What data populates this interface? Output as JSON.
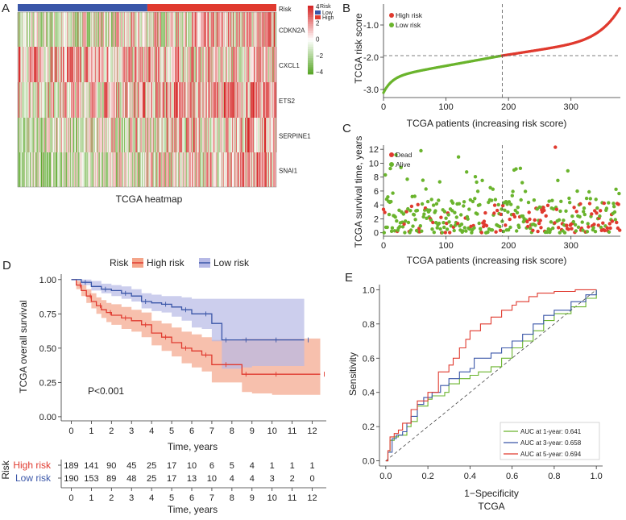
{
  "colors": {
    "high": "#e03a2f",
    "low": "#3a56a8",
    "green": "#6ab42d",
    "high_band": "#f4a58a",
    "low_band": "#b6b9e6",
    "text": "#222222"
  },
  "panels": {
    "A": "A",
    "B": "B",
    "C": "C",
    "D": "D",
    "E": "E"
  },
  "chart_data": [
    {
      "id": "A",
      "type": "heatmap",
      "title": "TCGA heatmap",
      "annotation_label": "Risk",
      "rows": [
        "CDKN2A",
        "CXCL1",
        "ETS2",
        "SERPINE1",
        "SNAI1"
      ],
      "n_low": 190,
      "n_high": 189,
      "legend": {
        "title": "Risk",
        "entries": [
          "Low",
          "High"
        ],
        "ticks": [
          "4",
          "2",
          "0",
          "−2",
          "−4"
        ],
        "range": [
          -4,
          4
        ]
      }
    },
    {
      "id": "B",
      "type": "scatter",
      "xlabel": "TCGA patients (increasing risk score)",
      "ylabel": "TCGA risk score",
      "xlim": [
        0,
        379
      ],
      "ylim": [
        -3.25,
        -0.35
      ],
      "xticks": [
        "0",
        "100",
        "200",
        "300"
      ],
      "yticks": [
        "-1.0",
        "-2.0",
        "-3.0"
      ],
      "cutoff_x": 190,
      "cutoff_y": -1.95,
      "legend": [
        "High risk",
        "Low risk"
      ],
      "score_curve": {
        "n": 379,
        "min": -3.1,
        "cutoff": -1.95,
        "max": -0.45
      }
    },
    {
      "id": "C",
      "type": "scatter",
      "xlabel": "TCGA patients (increasing risk score)",
      "ylabel": "TCGA survival time, years",
      "xlim": [
        0,
        379
      ],
      "ylim": [
        -0.5,
        12.6
      ],
      "xticks": [
        "0",
        "100",
        "200",
        "300"
      ],
      "yticks": [
        "0",
        "2",
        "4",
        "6",
        "8",
        "10",
        "12"
      ],
      "cutoff_x": 190,
      "legend": [
        "Dead",
        "Alive"
      ]
    },
    {
      "id": "D",
      "type": "line",
      "title": "Risk",
      "xlabel": "Time, years",
      "ylabel": "TCGA overall survival",
      "xlim": [
        -0.5,
        12.7
      ],
      "ylim": [
        -0.03,
        1.04
      ],
      "xticks": [
        "0",
        "1",
        "2",
        "3",
        "4",
        "5",
        "6",
        "7",
        "8",
        "9",
        "10",
        "11",
        "12"
      ],
      "yticks": [
        "0.00",
        "0.25",
        "0.50",
        "0.75",
        "1.00"
      ],
      "annotation": "P<0.001",
      "series": [
        {
          "name": "High risk",
          "t": [
            0,
            0.25,
            0.5,
            0.75,
            1,
            1.25,
            1.5,
            1.75,
            2,
            2.5,
            3,
            3.5,
            4,
            4.5,
            5,
            5.5,
            6,
            6.5,
            7,
            7.5,
            8,
            8.5,
            9,
            10,
            11,
            12.4
          ],
          "s": [
            1.0,
            0.96,
            0.92,
            0.88,
            0.84,
            0.81,
            0.78,
            0.76,
            0.74,
            0.72,
            0.7,
            0.67,
            0.61,
            0.58,
            0.54,
            0.5,
            0.48,
            0.45,
            0.38,
            0.38,
            0.38,
            0.31,
            0.31,
            0.31,
            0.31,
            0.31
          ],
          "lo": [
            1.0,
            0.93,
            0.88,
            0.83,
            0.79,
            0.75,
            0.72,
            0.69,
            0.67,
            0.64,
            0.62,
            0.58,
            0.52,
            0.48,
            0.44,
            0.39,
            0.36,
            0.33,
            0.25,
            0.25,
            0.25,
            0.18,
            0.17,
            0.16,
            0.16,
            0.15
          ],
          "hi": [
            1.0,
            0.99,
            0.96,
            0.93,
            0.9,
            0.87,
            0.85,
            0.83,
            0.82,
            0.8,
            0.78,
            0.76,
            0.7,
            0.68,
            0.65,
            0.62,
            0.6,
            0.58,
            0.56,
            0.56,
            0.56,
            0.57,
            0.57,
            0.57,
            0.57,
            0.57
          ]
        },
        {
          "name": "Low risk",
          "t": [
            0,
            0.5,
            1,
            1.5,
            2,
            2.5,
            3,
            3.5,
            4,
            4.5,
            5,
            5.5,
            6,
            6.5,
            7,
            7.5,
            8,
            8.5,
            9,
            10,
            11,
            11.6
          ],
          "s": [
            1.0,
            0.98,
            0.95,
            0.93,
            0.92,
            0.9,
            0.88,
            0.84,
            0.83,
            0.82,
            0.8,
            0.78,
            0.75,
            0.75,
            0.68,
            0.56,
            0.56,
            0.56,
            0.56,
            0.56,
            0.56,
            0.56
          ],
          "lo": [
            1.0,
            0.96,
            0.92,
            0.9,
            0.88,
            0.86,
            0.84,
            0.79,
            0.77,
            0.76,
            0.73,
            0.7,
            0.65,
            0.64,
            0.55,
            0.35,
            0.35,
            0.36,
            0.37,
            0.37,
            0.37,
            0.37
          ],
          "hi": [
            1.0,
            1.0,
            0.99,
            0.97,
            0.96,
            0.95,
            0.93,
            0.9,
            0.89,
            0.88,
            0.88,
            0.87,
            0.86,
            0.86,
            0.86,
            0.86,
            0.86,
            0.86,
            0.86,
            0.86,
            0.86,
            0.86
          ]
        }
      ]
    },
    {
      "id": "D-risk-table",
      "type": "table",
      "title": "Risk",
      "xlabel": "Time, years",
      "rows": [
        {
          "name": "High risk",
          "values": [
            "189",
            "141",
            "90",
            "45",
            "25",
            "17",
            "10",
            "6",
            "5",
            "4",
            "1",
            "1",
            "1"
          ]
        },
        {
          "name": "Low risk",
          "values": [
            "190",
            "153",
            "89",
            "48",
            "25",
            "17",
            "13",
            "10",
            "4",
            "4",
            "3",
            "2",
            "0"
          ]
        }
      ],
      "xticks": [
        "0",
        "1",
        "2",
        "3",
        "4",
        "5",
        "6",
        "7",
        "8",
        "9",
        "10",
        "11",
        "12"
      ]
    },
    {
      "id": "E",
      "type": "line",
      "title": "TCGA",
      "xlabel": "1−Specificity",
      "ylabel": "Sensitivity",
      "xlim": [
        -0.03,
        1.03
      ],
      "ylim": [
        -0.03,
        1.03
      ],
      "xticks": [
        "0.0",
        "0.2",
        "0.4",
        "0.6",
        "0.8",
        "1.0"
      ],
      "yticks": [
        "0.0",
        "0.2",
        "0.4",
        "0.6",
        "0.8",
        "1.0"
      ],
      "series": [
        {
          "name": "AUC at 1-year: 0.641",
          "x": [
            0,
            0.01,
            0.02,
            0.04,
            0.06,
            0.1,
            0.12,
            0.15,
            0.2,
            0.22,
            0.28,
            0.3,
            0.35,
            0.4,
            0.44,
            0.5,
            0.55,
            0.6,
            0.65,
            0.7,
            0.75,
            0.8,
            0.88,
            0.95,
            1.0
          ],
          "y": [
            0,
            0.05,
            0.12,
            0.14,
            0.15,
            0.2,
            0.23,
            0.32,
            0.36,
            0.38,
            0.4,
            0.45,
            0.48,
            0.5,
            0.52,
            0.55,
            0.6,
            0.66,
            0.7,
            0.76,
            0.82,
            0.86,
            0.9,
            0.95,
            1.0
          ]
        },
        {
          "name": "AUC at 3-year: 0.658",
          "x": [
            0,
            0.01,
            0.03,
            0.05,
            0.08,
            0.1,
            0.12,
            0.15,
            0.18,
            0.22,
            0.26,
            0.3,
            0.35,
            0.4,
            0.42,
            0.5,
            0.55,
            0.6,
            0.65,
            0.7,
            0.75,
            0.8,
            0.88,
            0.95,
            1.0
          ],
          "y": [
            0,
            0.05,
            0.13,
            0.15,
            0.17,
            0.22,
            0.26,
            0.33,
            0.37,
            0.4,
            0.44,
            0.48,
            0.52,
            0.54,
            0.6,
            0.63,
            0.66,
            0.7,
            0.74,
            0.8,
            0.85,
            0.88,
            0.93,
            0.97,
            1.0
          ]
        },
        {
          "name": "AUC at 5-year: 0.694",
          "x": [
            0,
            0.01,
            0.02,
            0.04,
            0.06,
            0.08,
            0.12,
            0.15,
            0.2,
            0.25,
            0.3,
            0.32,
            0.35,
            0.38,
            0.4,
            0.45,
            0.5,
            0.55,
            0.6,
            0.62,
            0.68,
            0.72,
            0.8,
            0.9,
            1.0
          ],
          "y": [
            0,
            0.06,
            0.14,
            0.16,
            0.18,
            0.22,
            0.3,
            0.35,
            0.4,
            0.52,
            0.56,
            0.6,
            0.66,
            0.71,
            0.76,
            0.8,
            0.84,
            0.88,
            0.91,
            0.93,
            0.96,
            0.98,
            0.99,
            1.0,
            1.0
          ]
        }
      ]
    }
  ]
}
